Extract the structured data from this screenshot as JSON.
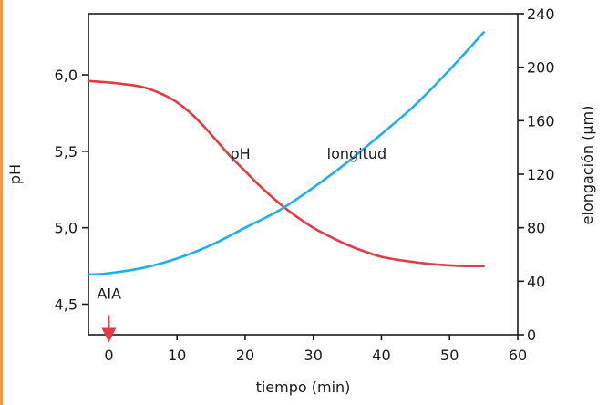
{
  "chart_data": {
    "type": "line",
    "xlabel": "tiempo (min)",
    "ylabel_left": "pH",
    "ylabel_right": "elongación (µm)",
    "xlim": [
      -3,
      60
    ],
    "ylim_left": [
      4.3,
      6.4
    ],
    "ylim_right": [
      0,
      240
    ],
    "x_ticks": [
      0,
      10,
      20,
      30,
      40,
      50,
      60
    ],
    "y_left_ticks": [
      "4,5",
      "5,0",
      "5,5",
      "6,0"
    ],
    "y_left_tick_values": [
      4.5,
      5.0,
      5.5,
      6.0
    ],
    "y_right_ticks": [
      0,
      40,
      80,
      120,
      160,
      200,
      240
    ],
    "series": [
      {
        "name": "pH",
        "axis": "left",
        "color": "#e53a46",
        "x": [
          -3,
          0,
          2,
          5,
          8,
          10,
          12,
          14,
          16,
          18,
          20,
          22,
          25,
          27,
          30,
          33,
          36,
          40,
          44,
          48,
          52,
          55
        ],
        "y": [
          5.96,
          5.95,
          5.94,
          5.92,
          5.87,
          5.82,
          5.75,
          5.66,
          5.56,
          5.46,
          5.37,
          5.28,
          5.16,
          5.09,
          5.0,
          4.93,
          4.87,
          4.81,
          4.78,
          4.76,
          4.75,
          4.75
        ]
      },
      {
        "name": "longitud",
        "axis": "right",
        "color": "#20b0e8",
        "x": [
          -3,
          0,
          5,
          10,
          15,
          20,
          25,
          30,
          35,
          40,
          45,
          50,
          55
        ],
        "y": [
          45,
          46,
          50,
          57,
          67,
          80,
          93,
          110,
          129,
          150,
          172,
          198,
          226
        ]
      }
    ],
    "annotations": [
      {
        "text": "pH",
        "x": 17.8,
        "y_left": 5.45
      },
      {
        "text": "longitud",
        "x": 32,
        "y_left": 5.45
      },
      {
        "text": "AIA",
        "x": 0,
        "y_left": 4.5
      }
    ],
    "grid": false,
    "legend": "none"
  }
}
